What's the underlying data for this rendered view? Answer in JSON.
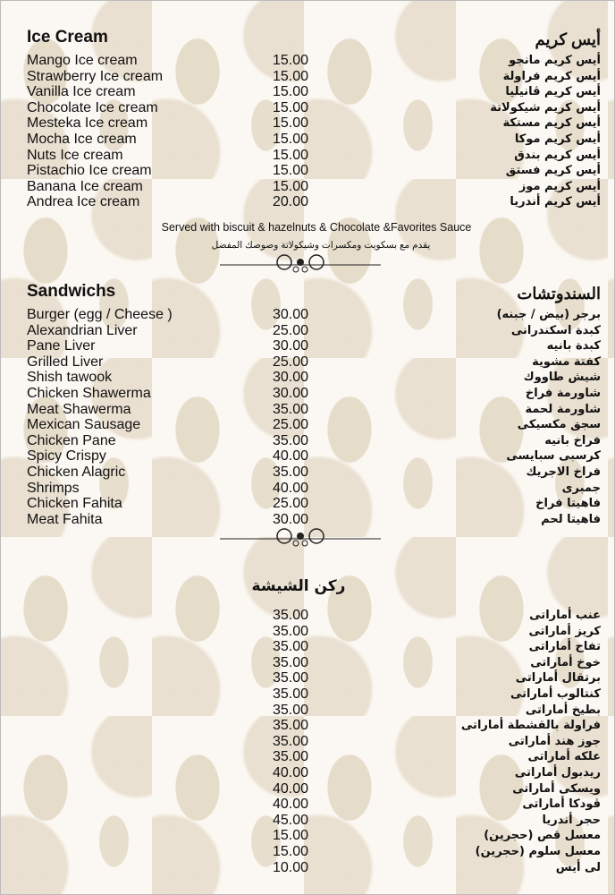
{
  "ice_cream": {
    "title_en": "Ice Cream",
    "title_ar": "أيس كريم",
    "items": [
      {
        "en": "Mango Ice cream",
        "price": "15.00",
        "ar": "أيس كريم مانجو"
      },
      {
        "en": "Strawberry Ice cream",
        "price": "15.00",
        "ar": "أيس كريم فراولة"
      },
      {
        "en": "Vanilla Ice cream",
        "price": "15.00",
        "ar": "أيس كريم ڤانيليا"
      },
      {
        "en": "Chocolate Ice cream",
        "price": "15.00",
        "ar": "أيس كريم شيكولاتة"
      },
      {
        "en": "Mesteka Ice cream",
        "price": "15.00",
        "ar": "أيس كريم مستكة"
      },
      {
        "en": "Mocha Ice cream",
        "price": "15.00",
        "ar": "أيس كريم موكا"
      },
      {
        "en": "Nuts Ice cream",
        "price": "15.00",
        "ar": "أيس كريم بندق"
      },
      {
        "en": "Pistachio Ice cream",
        "price": "15.00",
        "ar": "أيس كريم فستق"
      },
      {
        "en": "Banana Ice cream",
        "price": "15.00",
        "ar": "أيس كريم موز"
      },
      {
        "en": "Andrea Ice cream",
        "price": "20.00",
        "ar": "أيس كريم أندريا"
      }
    ],
    "note_en": "Served with biscuit & hazelnuts & Chocolate &Favorites Sauce",
    "note_ar": "يقدم مع بسكويت ومكسرات وشيكولاتة وصوصك المفضل"
  },
  "sandwiches": {
    "title_en": "Sandwichs",
    "title_ar": "السندوتشات",
    "items": [
      {
        "en": "Burger (egg / Cheese )",
        "price": "30.00",
        "ar": "برجر (بيض / جبنه)"
      },
      {
        "en": "Alexandrian Liver",
        "price": "25.00",
        "ar": "كبدة اسكندرانى"
      },
      {
        "en": "Pane Liver",
        "price": "30.00",
        "ar": "كبدة بانيه"
      },
      {
        "en": "Grilled Liver",
        "price": "25.00",
        "ar": "كفتة مشوية"
      },
      {
        "en": "Shish tawook",
        "price": "30.00",
        "ar": "شيش طاووك"
      },
      {
        "en": "Chicken Shawerma",
        "price": "30.00",
        "ar": "شاورمة فراخ"
      },
      {
        "en": "Meat Shawerma",
        "price": "35.00",
        "ar": "شاورمة لحمة"
      },
      {
        "en": "Mexican Sausage",
        "price": "25.00",
        "ar": "سجق مكسيكى"
      },
      {
        "en": "Chicken Pane",
        "price": "35.00",
        "ar": "فراخ بانيه"
      },
      {
        "en": "Spicy Crispy",
        "price": "40.00",
        "ar": "كرسبى سبايسى"
      },
      {
        "en": "Chicken Alagric",
        "price": "35.00",
        "ar": "فراخ الاجريك"
      },
      {
        "en": "Shrimps",
        "price": "40.00",
        "ar": "جمبرى"
      },
      {
        "en": "Chicken Fahita",
        "price": "25.00",
        "ar": "فاهيتا فراخ"
      },
      {
        "en": "Meat Fahita",
        "price": "30.00",
        "ar": "فاهيتا لحم"
      }
    ]
  },
  "shisha": {
    "title_ar": "ركن الشيشة",
    "items": [
      {
        "en": "",
        "price": "35.00",
        "ar": "عنب أماراتى"
      },
      {
        "en": "",
        "price": "35.00",
        "ar": "كريز أماراتى"
      },
      {
        "en": "",
        "price": "35.00",
        "ar": "تفاح أماراتى"
      },
      {
        "en": "",
        "price": "35.00",
        "ar": "خوخ أماراتى"
      },
      {
        "en": "",
        "price": "35.00",
        "ar": "برتقال أماراتى"
      },
      {
        "en": "",
        "price": "35.00",
        "ar": "كنتالوب أماراتى"
      },
      {
        "en": "",
        "price": "35.00",
        "ar": "بطيخ أماراتى"
      },
      {
        "en": "",
        "price": "35.00",
        "ar": "فراولة بالقشطة أماراتى"
      },
      {
        "en": "",
        "price": "35.00",
        "ar": "جوز هند أماراتى"
      },
      {
        "en": "",
        "price": "35.00",
        "ar": "علكه أماراتى"
      },
      {
        "en": "",
        "price": "40.00",
        "ar": "ريدبول أماراتى"
      },
      {
        "en": "",
        "price": "40.00",
        "ar": "ويسكى أماراتى"
      },
      {
        "en": "",
        "price": "40.00",
        "ar": "ڤودكا أماراتى"
      },
      {
        "en": "",
        "price": "45.00",
        "ar": "حجر أندريا"
      },
      {
        "en": "",
        "price": "15.00",
        "ar": "معسل قص (حجرين)"
      },
      {
        "en": "",
        "price": "15.00",
        "ar": "معسل سلوم (حجرين)"
      },
      {
        "en": "",
        "price": "10.00",
        "ar": "لى أيس"
      }
    ]
  }
}
